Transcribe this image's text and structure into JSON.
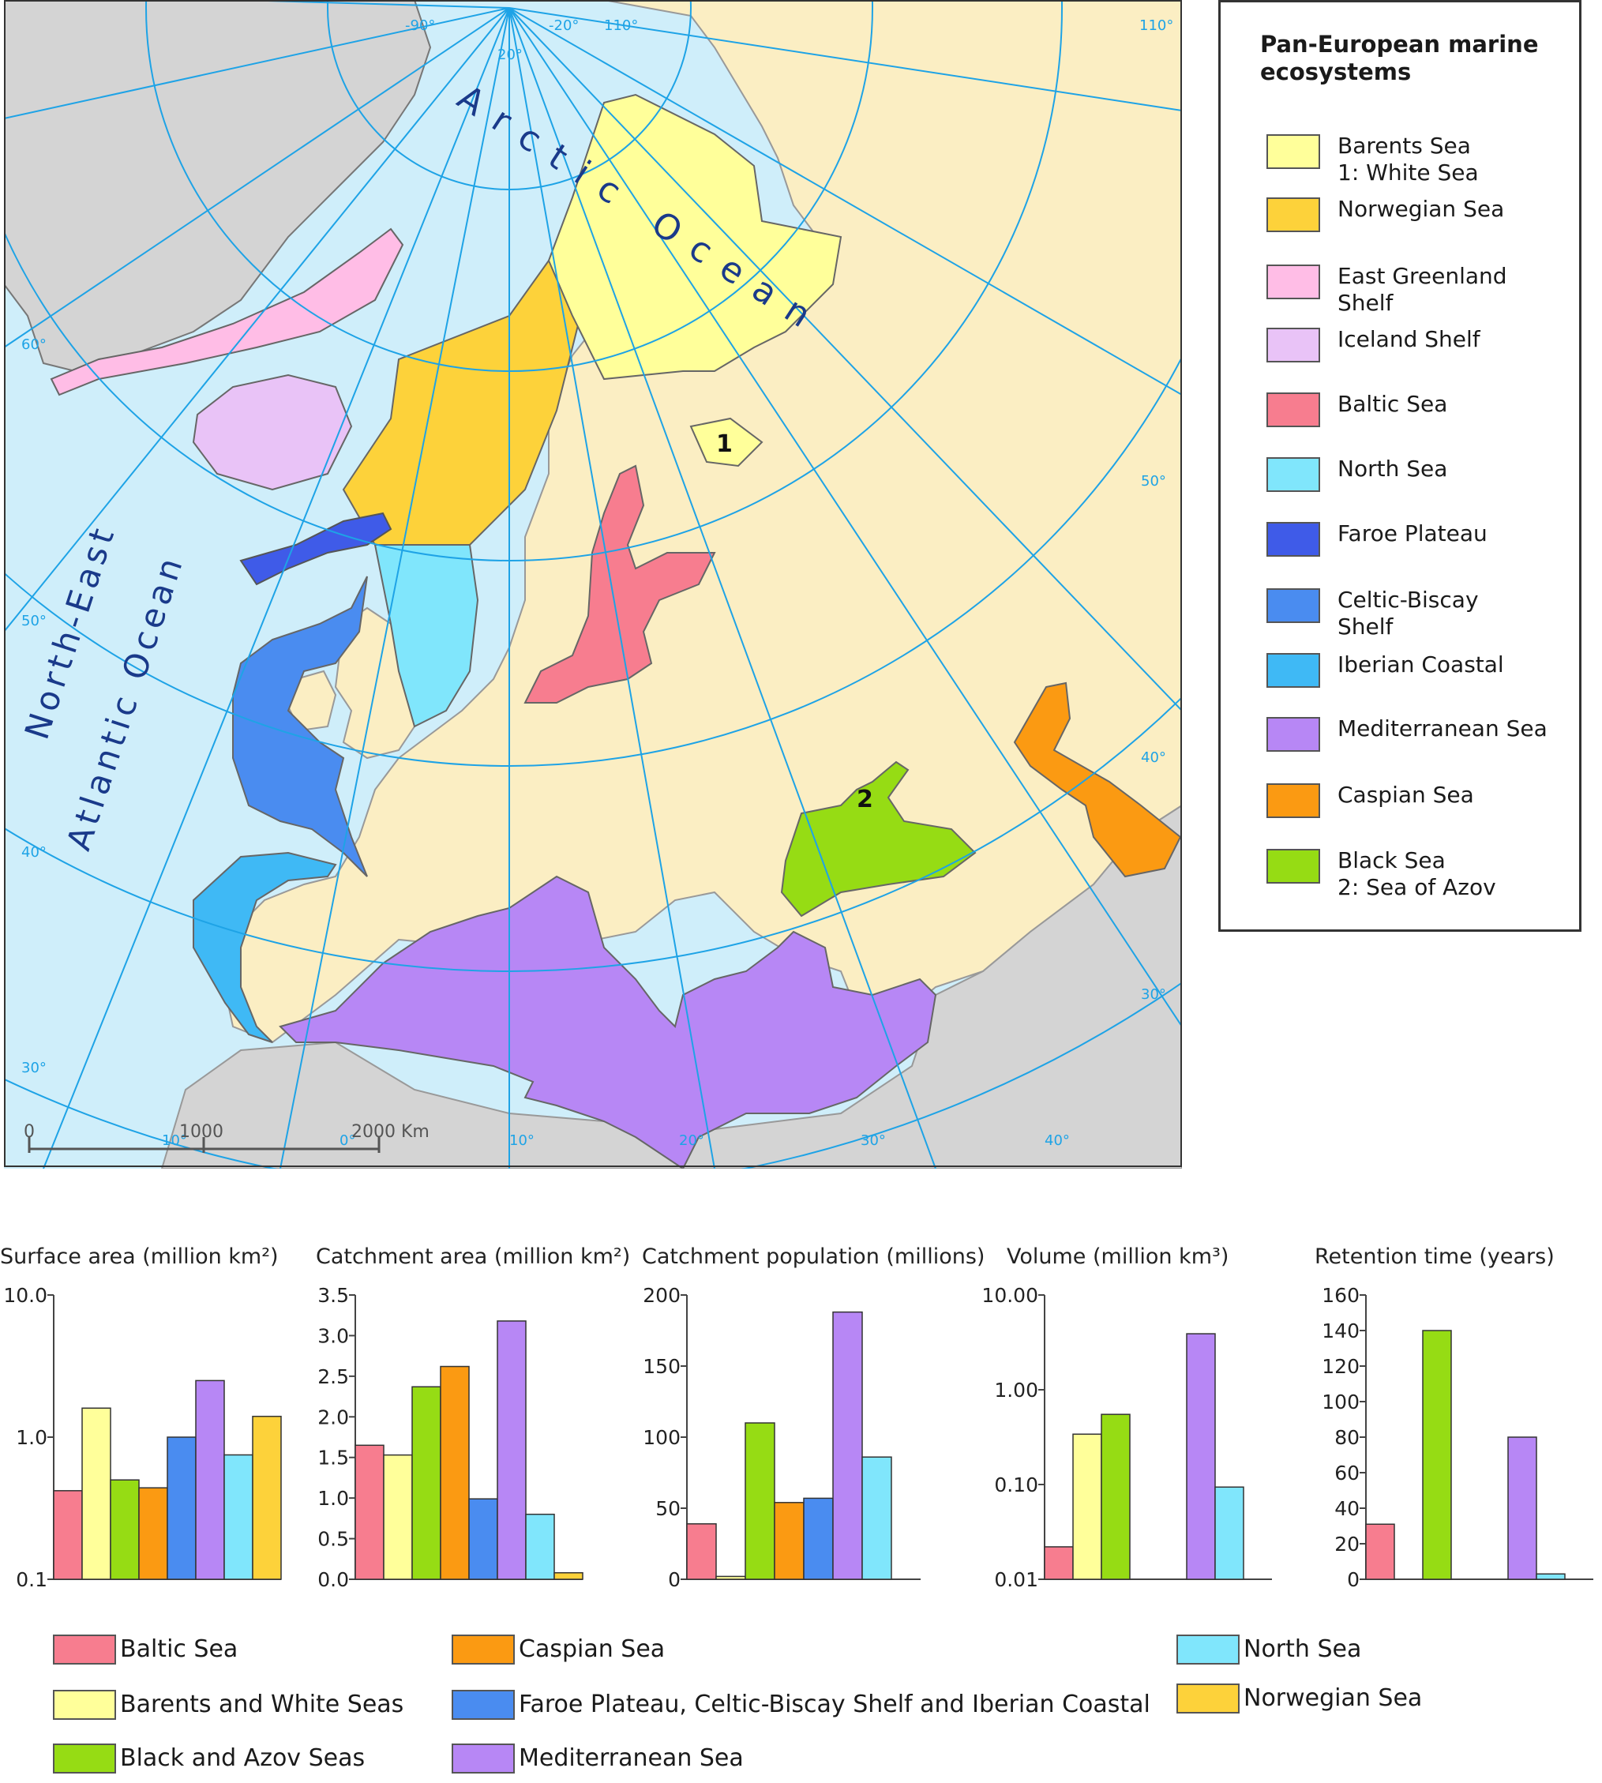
{
  "map": {
    "ocean_labels": {
      "arctic": "Arctic Ocean",
      "atlantic_line1": "North-East",
      "atlantic_line2": "Atlantic Ocean"
    },
    "markers": [
      "1",
      "2"
    ],
    "graticule_labels": [
      "-90°",
      "-20°",
      "20°",
      "110°",
      "110°",
      "60°",
      "50°",
      "40°",
      "30°",
      "50°",
      "40°",
      "30°",
      "10°",
      "0°",
      "10°",
      "20°",
      "30°",
      "40°"
    ],
    "scale_labels": [
      "0",
      "1000",
      "2000 Km"
    ],
    "colors": {
      "sea": "#cfeefa",
      "land_europe": "#fbeec3",
      "land_other": "#d4d4d4",
      "graticule": "#1ea3e6",
      "borders": "#999999"
    }
  },
  "legend": {
    "title": "Pan-European marine\necosystems",
    "items": [
      {
        "label": "Barents Sea\n1: White Sea",
        "color": "#ffff9a"
      },
      {
        "label": "Norwegian Sea",
        "color": "#fdd23a"
      },
      {
        "label": "East Greenland\nShelf",
        "color": "#ffbde6"
      },
      {
        "label": " Iceland Shelf",
        "color": "#e9c3f7"
      },
      {
        "label": "Baltic Sea",
        "color": "#f77d8f"
      },
      {
        "label": "North Sea",
        "color": "#80e6fc"
      },
      {
        "label": "Faroe Plateau",
        "color": "#3f5be8"
      },
      {
        "label": "Celtic-Biscay\nShelf",
        "color": "#4a8cf0"
      },
      {
        "label": "Iberian Coastal",
        "color": "#3fb9f5"
      },
      {
        "label": "Mediterranean Sea",
        "color": "#b787f5"
      },
      {
        "label": "Caspian Sea",
        "color": "#fb9a12"
      },
      {
        "label": "Black Sea\n2: Sea of Azov",
        "color": "#96dc14"
      }
    ]
  },
  "chart_data": [
    {
      "type": "bar",
      "title": "Surface area (million km²)",
      "scale": "log",
      "ylim": [
        0.1,
        10
      ],
      "yticks": [
        "10.0",
        "1.0",
        "0.1"
      ],
      "categories": [
        "Baltic Sea",
        "Barents and White Seas",
        "Black and Azov Seas",
        "Caspian Sea",
        "Faroe Plateau, Celtic-Biscay Shelf and Iberian Coastal",
        "Mediterranean Sea",
        "North Sea",
        "Norwegian Sea"
      ],
      "values": [
        0.42,
        1.6,
        0.5,
        0.44,
        1.0,
        2.5,
        0.75,
        1.4
      ]
    },
    {
      "type": "bar",
      "title": "Catchment area (million km²)",
      "scale": "linear",
      "ylim": [
        0,
        3.5
      ],
      "yticks": [
        "3.5",
        "3.0",
        "2.5",
        "2.0",
        "1.5",
        "1.0",
        "0.5",
        "0.0"
      ],
      "categories": [
        "Baltic Sea",
        "Barents and White Seas",
        "Black and Azov Seas",
        "Caspian Sea",
        "Faroe Plateau, Celtic-Biscay Shelf and Iberian Coastal",
        "Mediterranean Sea",
        "North Sea",
        "Norwegian Sea"
      ],
      "values": [
        1.65,
        1.53,
        2.37,
        2.62,
        0.99,
        3.18,
        0.8,
        0.08
      ]
    },
    {
      "type": "bar",
      "title": "Catchment population (millions)",
      "scale": "linear",
      "ylim": [
        0,
        200
      ],
      "yticks": [
        "200",
        "150",
        "100",
        "50",
        "0"
      ],
      "categories": [
        "Baltic Sea",
        "Barents and White Seas",
        "Black and Azov Seas",
        "Caspian Sea",
        "Faroe Plateau, Celtic-Biscay Shelf and Iberian Coastal",
        "Mediterranean Sea",
        "North Sea"
      ],
      "values": [
        39,
        2,
        110,
        54,
        57,
        188,
        86
      ]
    },
    {
      "type": "bar",
      "title": "Volume (million km³)",
      "scale": "log",
      "ylim": [
        0.01,
        10
      ],
      "yticks": [
        "10.00",
        "1.00",
        "0.10",
        "0.01"
      ],
      "categories": [
        "Baltic Sea",
        "Barents and White Seas",
        "Black and Azov Seas",
        "Mediterranean Sea",
        "North Sea"
      ],
      "values": [
        0.022,
        0.34,
        0.55,
        3.9,
        0.094
      ]
    },
    {
      "type": "bar",
      "title": "Retention time (years)",
      "scale": "linear",
      "ylim": [
        0,
        160
      ],
      "yticks": [
        "160",
        "140",
        "120",
        "100",
        "80",
        "60",
        "40",
        "20",
        "0"
      ],
      "categories": [
        "Baltic Sea",
        "Black and Azov Seas",
        "Mediterranean Sea",
        "North Sea"
      ],
      "values": [
        31,
        140,
        80,
        3
      ]
    }
  ],
  "bottom_legend": [
    {
      "label": "Baltic Sea",
      "color": "#f77d8f"
    },
    {
      "label": "Barents and White Seas",
      "color": "#ffff9a"
    },
    {
      "label": "Black and Azov Seas",
      "color": "#96dc14"
    },
    {
      "label": "Caspian Sea",
      "color": "#fb9a12"
    },
    {
      "label": "Faroe Plateau, Celtic-Biscay Shelf and Iberian Coastal",
      "color": "#4a8cf0"
    },
    {
      "label": "Mediterranean Sea",
      "color": "#b787f5"
    },
    {
      "label": "North Sea",
      "color": "#80e6fc"
    },
    {
      "label": "Norwegian Sea",
      "color": "#fdd23a"
    }
  ]
}
